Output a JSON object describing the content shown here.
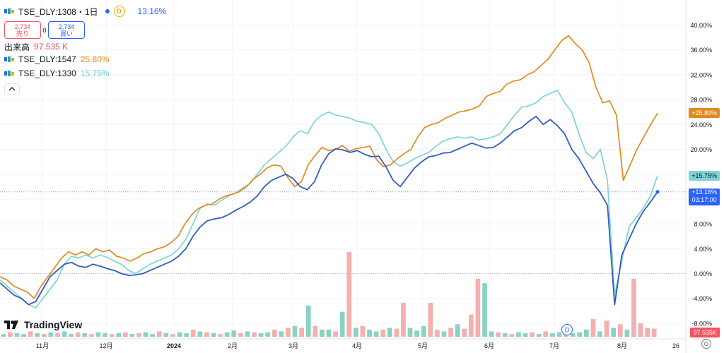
{
  "header": {
    "symbol": "TSE_DLY:1308・1日",
    "d_badge": "D",
    "change": "13.16%",
    "sell_price": "2,734",
    "sell_label": "売り",
    "spread": "0",
    "buy_price": "2,734",
    "buy_label": "買い",
    "volume_label": "出来高",
    "volume_value": "97.535 K",
    "compare_1_symbol": "TSE_DLY:1547",
    "compare_1_value": "25.80%",
    "compare_2_symbol": "TSE_DLY:1330",
    "compare_2_value": "15.75%"
  },
  "branding": {
    "name": "TradingView"
  },
  "colors": {
    "series_1308": "#2f5cc4",
    "series_1547": "#e18a1f",
    "series_1330": "#7fd3d8",
    "volume_up": "#7dcdbc",
    "volume_down": "#f4a6a6",
    "grid": "#f0f3fa"
  },
  "chart_data": {
    "type": "line",
    "y_unit": "%",
    "ylim": [
      -10,
      40
    ],
    "y_ticks": [
      "40.00%",
      "36.00%",
      "32.00%",
      "28.00%",
      "24.00%",
      "20.00%",
      "16.00%",
      "12.00%",
      "8.00%",
      "4.00%",
      "0.00%",
      "-4.00%",
      "-8.00%"
    ],
    "x_tick_labels": [
      "11月",
      "12月",
      "2024",
      "2月",
      "3月",
      "4月",
      "5月",
      "6月",
      "7月",
      "8月",
      "26"
    ],
    "series": [
      {
        "name": "TSE_DLY:1547",
        "last_label": "+25.80%",
        "values": [
          -0.5,
          -1.0,
          -2.0,
          -2.5,
          -3.0,
          -4.0,
          -2.0,
          -0.5,
          1.0,
          2.5,
          3.5,
          3.0,
          3.5,
          3.0,
          4.0,
          3.5,
          3.8,
          2.8,
          2.5,
          2.0,
          2.5,
          3.2,
          3.5,
          4.0,
          4.3,
          5.0,
          6.0,
          8.0,
          9.5,
          10.5,
          11.0,
          11.2,
          12.0,
          12.5,
          12.8,
          13.2,
          14.0,
          15.2,
          16.0,
          17.0,
          17.5,
          17.3,
          15.5,
          14.0,
          14.8,
          17.5,
          19.0,
          20.3,
          19.8,
          20.0,
          20.6,
          19.7,
          20.1,
          20.3,
          20.5,
          18.3,
          17.2,
          17.5,
          18.5,
          19.3,
          20.0,
          22.0,
          23.5,
          24.0,
          24.3,
          25.0,
          25.5,
          26.0,
          26.2,
          26.5,
          27.0,
          28.5,
          29.0,
          29.3,
          30.5,
          31.0,
          31.2,
          32.0,
          32.5,
          33.5,
          34.5,
          36.0,
          37.5,
          38.3,
          37.0,
          36.0,
          34.0,
          30.0,
          27.5,
          27.8,
          25.5,
          15.0,
          17.5,
          20.0,
          22.0,
          24.0,
          25.8
        ]
      },
      {
        "name": "TSE_DLY:1330",
        "last_label": "+15.75%",
        "values": [
          -1.0,
          -2.0,
          -3.0,
          -4.0,
          -5.0,
          -5.5,
          -4.0,
          -2.5,
          -1.0,
          1.5,
          2.8,
          2.5,
          3.0,
          2.5,
          3.0,
          2.6,
          2.0,
          1.5,
          0.5,
          0.0,
          0.8,
          1.5,
          2.0,
          2.5,
          3.0,
          4.0,
          5.5,
          8.0,
          10.5,
          11.2,
          11.0,
          11.8,
          12.5,
          13.0,
          13.8,
          14.5,
          16.0,
          17.5,
          18.5,
          19.5,
          20.5,
          22.0,
          23.0,
          22.5,
          24.5,
          25.5,
          26.0,
          25.5,
          25.3,
          25.0,
          24.5,
          24.3,
          24.0,
          22.5,
          20.0,
          18.0,
          17.3,
          17.8,
          18.5,
          19.0,
          19.5,
          20.5,
          21.3,
          21.7,
          22.0,
          21.8,
          22.0,
          21.5,
          21.7,
          22.0,
          22.5,
          24.0,
          25.5,
          26.8,
          27.0,
          27.5,
          28.5,
          29.0,
          29.5,
          27.5,
          26.0,
          22.5,
          19.5,
          18.5,
          20.0,
          15.0,
          -3.5,
          2.0,
          7.5,
          9.0,
          10.5,
          12.5,
          15.75
        ]
      },
      {
        "name": "TSE_DLY:1308",
        "last_label": "+13.16%",
        "time_remaining": "03:17:00",
        "values": [
          -1.5,
          -2.5,
          -3.5,
          -4.0,
          -5.0,
          -4.5,
          -2.5,
          -0.5,
          0.5,
          1.5,
          1.8,
          1.2,
          1.0,
          1.5,
          1.2,
          0.8,
          0.5,
          0.0,
          -0.3,
          -0.2,
          0.0,
          0.5,
          1.0,
          1.5,
          2.0,
          2.8,
          4.0,
          6.0,
          7.5,
          8.5,
          8.8,
          9.0,
          9.5,
          10.2,
          10.8,
          11.5,
          12.5,
          14.0,
          15.0,
          15.5,
          16.0,
          15.3,
          14.0,
          13.5,
          14.8,
          17.5,
          19.3,
          20.1,
          19.9,
          19.5,
          19.8,
          19.2,
          18.8,
          18.9,
          17.2,
          15.0,
          14.0,
          15.5,
          17.0,
          18.0,
          18.8,
          19.0,
          19.4,
          19.5,
          20.0,
          20.5,
          21.0,
          20.6,
          20.2,
          20.3,
          21.0,
          22.0,
          23.0,
          23.5,
          24.5,
          25.3,
          24.0,
          24.8,
          23.8,
          22.5,
          20.0,
          18.5,
          16.5,
          14.5,
          13.0,
          11.0,
          -5.0,
          3.0,
          5.5,
          8.0,
          10.0,
          11.5,
          13.16
        ]
      }
    ],
    "volume": {
      "last_label": "97.535K",
      "values": [
        0.3,
        0.5,
        0.4,
        0.3,
        0.6,
        0.4,
        0.3,
        0.5,
        0.4,
        0.6,
        0.3,
        0.5,
        0.4,
        0.3,
        0.5,
        0.4,
        0.3,
        0.4,
        0.5,
        0.3,
        0.4,
        0.5,
        0.3,
        0.6,
        0.4,
        0.3,
        0.5,
        0.4,
        0.8,
        0.6,
        0.5,
        0.4,
        0.3,
        0.5,
        0.7,
        0.4,
        0.6,
        0.5,
        0.4,
        0.5,
        0.8,
        0.6,
        1.0,
        1.2,
        1.0,
        3.5,
        1.2,
        0.8,
        0.8,
        0.6,
        2.8,
        9.5,
        1.0,
        1.2,
        0.8,
        0.6,
        0.8,
        1.0,
        0.9,
        3.8,
        1.0,
        0.7,
        1.2,
        3.8,
        0.8,
        0.6,
        1.0,
        1.4,
        0.9,
        2.5,
        6.5,
        6.0,
        0.6,
        0.5,
        0.4,
        0.3,
        0.5,
        0.4,
        0.5,
        0.3,
        0.6,
        0.4,
        0.5,
        0.6,
        0.4,
        0.5,
        0.8,
        2.0,
        0.6,
        1.8,
        1.0,
        1.4,
        0.8,
        6.5,
        1.5,
        1.0,
        0.9
      ],
      "directions": [
        "u",
        "d",
        "u",
        "u",
        "d",
        "u",
        "d",
        "u",
        "d",
        "u",
        "u",
        "d",
        "u",
        "d",
        "u",
        "u",
        "d",
        "u",
        "d",
        "u",
        "d",
        "u",
        "u",
        "d",
        "u",
        "d",
        "u",
        "u",
        "d",
        "u",
        "d",
        "u",
        "d",
        "u",
        "u",
        "d",
        "u",
        "d",
        "u",
        "u",
        "d",
        "u",
        "d",
        "u",
        "d",
        "u",
        "d",
        "u",
        "u",
        "d",
        "u",
        "d",
        "u",
        "d",
        "u",
        "u",
        "d",
        "u",
        "d",
        "d",
        "u",
        "u",
        "u",
        "d",
        "d",
        "u",
        "d",
        "u",
        "d",
        "d",
        "d",
        "u",
        "u",
        "d",
        "u",
        "d",
        "u",
        "u",
        "d",
        "u",
        "d",
        "u",
        "u",
        "d",
        "u",
        "u",
        "u",
        "d",
        "u",
        "d",
        "u",
        "d",
        "u",
        "d",
        "d",
        "d",
        "d"
      ]
    }
  }
}
